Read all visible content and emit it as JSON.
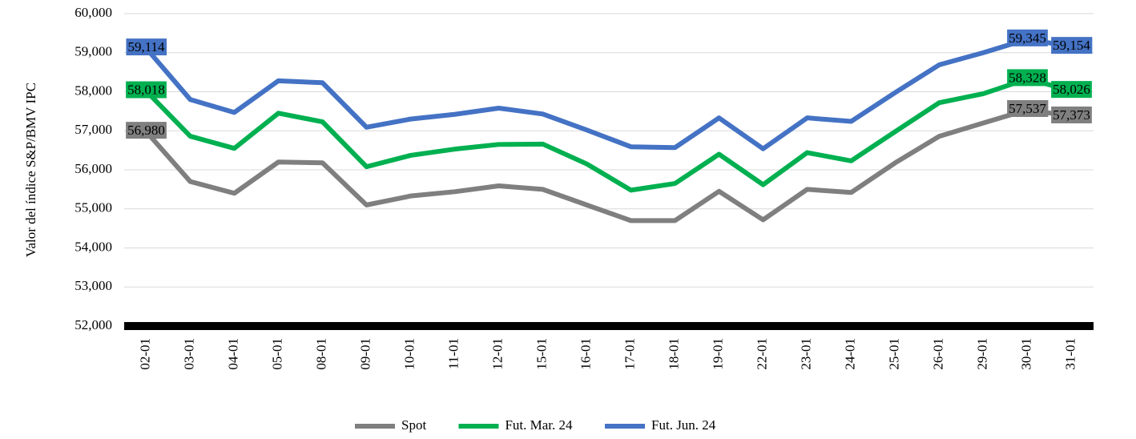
{
  "chart_data": {
    "type": "line",
    "y_label": "Valor del índice S&P/BMV IPC",
    "categories": [
      "02-01",
      "03-01",
      "04-01",
      "05-01",
      "08-01",
      "09-01",
      "10-01",
      "11-01",
      "12-01",
      "15-01",
      "16-01",
      "17-01",
      "18-01",
      "19-01",
      "22-01",
      "23-01",
      "24-01",
      "25-01",
      "26-01",
      "29-01",
      "30-01",
      "31-01"
    ],
    "series": [
      {
        "name": "Spot",
        "color": "#7f7f7f",
        "values": [
          56980,
          55700,
          55400,
          56200,
          56180,
          55100,
          55330,
          55440,
          55590,
          55500,
          55100,
          54700,
          54700,
          55450,
          54720,
          55500,
          55420,
          56180,
          56860,
          57200,
          57537,
          57373
        ],
        "value_labels": [
          "56,980",
          null,
          null,
          null,
          null,
          null,
          null,
          null,
          null,
          null,
          null,
          null,
          null,
          null,
          null,
          null,
          null,
          null,
          null,
          null,
          "57,537",
          "57,373"
        ]
      },
      {
        "name": "Fut. Mar. 24",
        "color": "#00b050",
        "values": [
          58018,
          56860,
          56550,
          57450,
          57230,
          56080,
          56370,
          56530,
          56650,
          56660,
          56150,
          55480,
          55650,
          56400,
          55620,
          56440,
          56230,
          56980,
          57720,
          57950,
          58328,
          58026
        ],
        "value_labels": [
          "58,018",
          null,
          null,
          null,
          null,
          null,
          null,
          null,
          null,
          null,
          null,
          null,
          null,
          null,
          null,
          null,
          null,
          null,
          null,
          null,
          "58,328",
          "58,026"
        ]
      },
      {
        "name": "Fut. Jun. 24",
        "color": "#4472c4",
        "values": [
          59114,
          57800,
          57470,
          58280,
          58230,
          57090,
          57300,
          57420,
          57580,
          57430,
          57020,
          56590,
          56570,
          57330,
          56540,
          57330,
          57240,
          57980,
          58690,
          59000,
          59345,
          59154
        ],
        "value_labels": [
          "59,114",
          null,
          null,
          null,
          null,
          null,
          null,
          null,
          null,
          null,
          null,
          null,
          null,
          null,
          null,
          null,
          null,
          null,
          null,
          null,
          "59,345",
          "59,154"
        ]
      }
    ],
    "ylim": [
      52000,
      60000
    ],
    "yticks": [
      {
        "value": 52000,
        "label": "52,000"
      },
      {
        "value": 53000,
        "label": "53,000"
      },
      {
        "value": 54000,
        "label": "54,000"
      },
      {
        "value": 55000,
        "label": "55,000"
      },
      {
        "value": 56000,
        "label": "56,000"
      },
      {
        "value": 57000,
        "label": "57,000"
      },
      {
        "value": 58000,
        "label": "58,000"
      },
      {
        "value": 59000,
        "label": "59,000"
      },
      {
        "value": 60000,
        "label": "60,000"
      }
    ],
    "grid": true,
    "legend": "bottom"
  }
}
